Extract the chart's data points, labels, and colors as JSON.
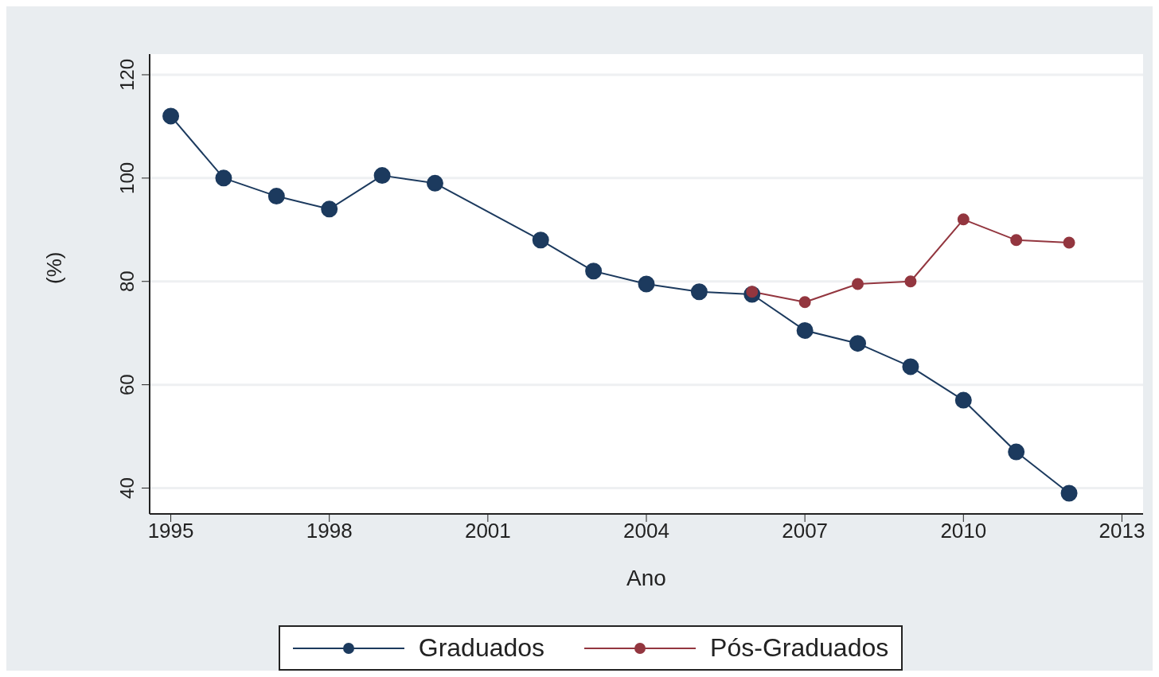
{
  "chart_data": {
    "type": "line",
    "xlabel": "Ano",
    "ylabel": "(%)",
    "x": [
      1995,
      1996,
      1997,
      1998,
      1999,
      2000,
      2002,
      2003,
      2004,
      2005,
      2006,
      2007,
      2008,
      2009,
      2010,
      2011,
      2012
    ],
    "series": [
      {
        "name": "Graduados",
        "color": "#1c3a5e",
        "values": [
          112,
          100,
          96.5,
          94,
          100.5,
          99,
          88,
          82,
          79.5,
          78,
          77.5,
          70.5,
          68,
          63.5,
          57,
          47,
          39
        ]
      },
      {
        "name": "Pós-Graduados",
        "color": "#93363f",
        "values": [
          null,
          null,
          null,
          null,
          null,
          null,
          null,
          null,
          null,
          null,
          78,
          76,
          79.5,
          80,
          92,
          88,
          87.5
        ]
      }
    ],
    "xlim": [
      1994.6,
      2013.4
    ],
    "xticks": [
      1995,
      1998,
      2001,
      2004,
      2007,
      2010,
      2013
    ],
    "ylim": [
      35,
      124
    ],
    "yticks": [
      40,
      60,
      80,
      100,
      120
    ],
    "grid": "y",
    "legend": "bottom",
    "marker": "circle",
    "line_style": "solid"
  }
}
